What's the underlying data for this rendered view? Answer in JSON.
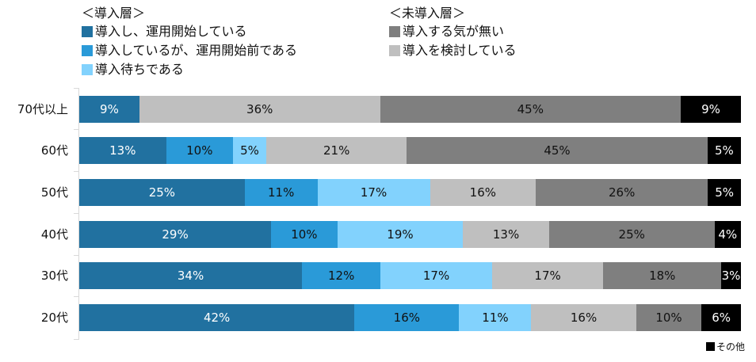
{
  "chart_data": {
    "type": "bar",
    "orientation": "horizontal",
    "stacked": "100%",
    "title": "",
    "xlabel": "",
    "ylabel": "",
    "categories": [
      "70代以上",
      "60代",
      "50代",
      "40代",
      "30代",
      "20代"
    ],
    "legend_groups": [
      {
        "title": "＜導入層＞",
        "items": [
          "導入し、運用開始している",
          "導入しているが、運用開始前である",
          "導入待ちである"
        ]
      },
      {
        "title": "＜未導入層＞",
        "items": [
          "導入する気が無い",
          "導入を検討している"
        ]
      }
    ],
    "series": [
      {
        "name": "導入し、運用開始している",
        "color": "#2171a0",
        "label_color": "#ffffff",
        "values": [
          9,
          13,
          25,
          29,
          34,
          42
        ]
      },
      {
        "name": "導入しているが、運用開始前である",
        "color": "#2a9ad8",
        "label_color": "#111111",
        "values": [
          0,
          10,
          11,
          10,
          12,
          16
        ]
      },
      {
        "name": "導入待ちである",
        "color": "#82d2fd",
        "label_color": "#111111",
        "values": [
          0,
          5,
          17,
          19,
          17,
          11
        ]
      },
      {
        "name": "導入を検討している",
        "color": "#bfbfbf",
        "label_color": "#111111",
        "values": [
          36,
          21,
          16,
          13,
          17,
          16
        ]
      },
      {
        "name": "導入する気が無い",
        "color": "#7f7f7f",
        "label_color": "#111111",
        "values": [
          45,
          45,
          26,
          25,
          18,
          10
        ]
      },
      {
        "name": "その他",
        "color": "#000000",
        "label_color": "#ffffff",
        "values": [
          9,
          5,
          5,
          4,
          3,
          6
        ]
      }
    ],
    "xlim": [
      0,
      100
    ],
    "grid": false,
    "legend_position": "top"
  },
  "legend": {
    "left": {
      "title": "＜導入層＞",
      "items": [
        {
          "label": "導入し、運用開始している",
          "color": "#2171a0"
        },
        {
          "label": "導入しているが、運用開始前である",
          "color": "#2a9ad8"
        },
        {
          "label": "導入待ちである",
          "color": "#82d2fd"
        }
      ]
    },
    "right": {
      "title": "＜未導入層＞",
      "items": [
        {
          "label": "導入する気が無い",
          "color": "#7f7f7f"
        },
        {
          "label": "導入を検討している",
          "color": "#bfbfbf"
        }
      ]
    },
    "other": {
      "label": "その他",
      "color": "#000000"
    }
  }
}
